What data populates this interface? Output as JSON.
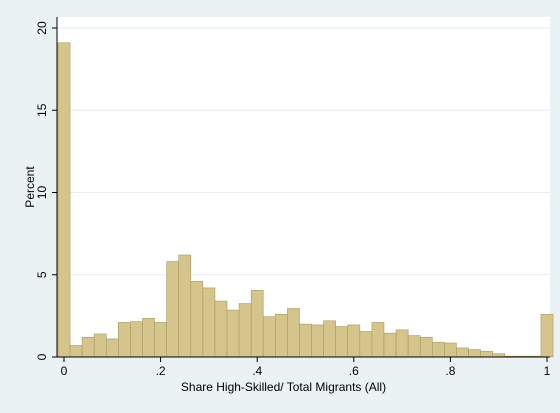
{
  "chart_data": {
    "type": "bar",
    "xlabel": "Share High-Skilled/ Total Migrants (All)",
    "ylabel": "Percent",
    "xlim": [
      0,
      1
    ],
    "ylim": [
      0,
      20
    ],
    "x_ticks": [
      {
        "value": 0,
        "label": "0"
      },
      {
        "value": 0.2,
        "label": ".2"
      },
      {
        "value": 0.4,
        "label": ".4"
      },
      {
        "value": 0.6,
        "label": ".6"
      },
      {
        "value": 0.8,
        "label": ".8"
      },
      {
        "value": 1,
        "label": "1"
      }
    ],
    "y_ticks": [
      {
        "value": 0,
        "label": "0"
      },
      {
        "value": 5,
        "label": "5"
      },
      {
        "value": 10,
        "label": "10"
      },
      {
        "value": 15,
        "label": "15"
      },
      {
        "value": 20,
        "label": "20"
      }
    ],
    "grid": true,
    "bins": [
      {
        "x0": -0.0125,
        "x1": 0.0125,
        "y": 19.1
      },
      {
        "x0": 0.0125,
        "x1": 0.0375,
        "y": 0.7
      },
      {
        "x0": 0.0375,
        "x1": 0.0625,
        "y": 1.2
      },
      {
        "x0": 0.0625,
        "x1": 0.0875,
        "y": 1.4
      },
      {
        "x0": 0.0875,
        "x1": 0.1125,
        "y": 1.1
      },
      {
        "x0": 0.1125,
        "x1": 0.1375,
        "y": 2.1
      },
      {
        "x0": 0.1375,
        "x1": 0.1625,
        "y": 2.15
      },
      {
        "x0": 0.1625,
        "x1": 0.1875,
        "y": 2.35
      },
      {
        "x0": 0.1875,
        "x1": 0.2125,
        "y": 2.1
      },
      {
        "x0": 0.2125,
        "x1": 0.2375,
        "y": 5.8
      },
      {
        "x0": 0.2375,
        "x1": 0.2625,
        "y": 6.2
      },
      {
        "x0": 0.2625,
        "x1": 0.2875,
        "y": 4.6
      },
      {
        "x0": 0.2875,
        "x1": 0.3125,
        "y": 4.2
      },
      {
        "x0": 0.3125,
        "x1": 0.3375,
        "y": 3.4
      },
      {
        "x0": 0.3375,
        "x1": 0.3625,
        "y": 2.85
      },
      {
        "x0": 0.3625,
        "x1": 0.3875,
        "y": 3.25
      },
      {
        "x0": 0.3875,
        "x1": 0.4125,
        "y": 4.05
      },
      {
        "x0": 0.4125,
        "x1": 0.4375,
        "y": 2.45
      },
      {
        "x0": 0.4375,
        "x1": 0.4625,
        "y": 2.6
      },
      {
        "x0": 0.4625,
        "x1": 0.4875,
        "y": 2.95
      },
      {
        "x0": 0.4875,
        "x1": 0.5125,
        "y": 2.0
      },
      {
        "x0": 0.5125,
        "x1": 0.5375,
        "y": 1.95
      },
      {
        "x0": 0.5375,
        "x1": 0.5625,
        "y": 2.2
      },
      {
        "x0": 0.5625,
        "x1": 0.5875,
        "y": 1.85
      },
      {
        "x0": 0.5875,
        "x1": 0.6125,
        "y": 1.95
      },
      {
        "x0": 0.6125,
        "x1": 0.6375,
        "y": 1.55
      },
      {
        "x0": 0.6375,
        "x1": 0.6625,
        "y": 2.1
      },
      {
        "x0": 0.6625,
        "x1": 0.6875,
        "y": 1.45
      },
      {
        "x0": 0.6875,
        "x1": 0.7125,
        "y": 1.65
      },
      {
        "x0": 0.7125,
        "x1": 0.7375,
        "y": 1.3
      },
      {
        "x0": 0.7375,
        "x1": 0.7625,
        "y": 1.2
      },
      {
        "x0": 0.7625,
        "x1": 0.7875,
        "y": 0.9
      },
      {
        "x0": 0.7875,
        "x1": 0.8125,
        "y": 0.85
      },
      {
        "x0": 0.8125,
        "x1": 0.8375,
        "y": 0.55
      },
      {
        "x0": 0.8375,
        "x1": 0.8625,
        "y": 0.45
      },
      {
        "x0": 0.8625,
        "x1": 0.8875,
        "y": 0.35
      },
      {
        "x0": 0.8875,
        "x1": 0.9125,
        "y": 0.2
      },
      {
        "x0": 0.9125,
        "x1": 0.9375,
        "y": 0.05
      },
      {
        "x0": 0.9375,
        "x1": 0.9625,
        "y": 0.05
      },
      {
        "x0": 0.9625,
        "x1": 0.9875,
        "y": 0.05
      },
      {
        "x0": 0.9875,
        "x1": 1.0125,
        "y": 2.6
      }
    ],
    "colors": {
      "outer_background": "#eaf2f3",
      "plot_background": "#ffffff",
      "bar_fill": "#d5c48c",
      "bar_stroke": "#a89a63",
      "grid": "#e6eef0",
      "axis": "#000000"
    }
  }
}
